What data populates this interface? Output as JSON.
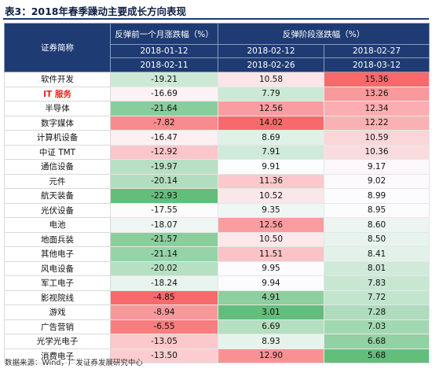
{
  "title": "表3：2018年春季躁动主要成长方向表现",
  "source": "数据来源：Wind，广发证券发展研究中心",
  "colors": {
    "header_bg": "#1f3b73",
    "positive_high": "#f26b6b",
    "negative_high": "#5fb86e",
    "highlight_text": "#e0261d"
  },
  "header": {
    "name_col": "证券简称",
    "group1": "反弹前一个月涨跌幅（%）",
    "group2": "反弹阶段涨跌幅（%）",
    "periods": [
      {
        "start": "2018-01-12",
        "end": "2018-02-11"
      },
      {
        "start": "2018-02-12",
        "end": "2018-02-26"
      },
      {
        "start": "2018-02-27",
        "end": "2018-03-12"
      }
    ]
  },
  "rows": [
    {
      "name": "软件开发",
      "values": [
        "-19.21",
        "10.58",
        "15.36"
      ]
    },
    {
      "name": "IT 服务",
      "values": [
        "-16.69",
        "7.79",
        "13.26"
      ],
      "highlight": true
    },
    {
      "name": "半导体",
      "values": [
        "-21.64",
        "12.56",
        "12.34"
      ]
    },
    {
      "name": "数字媒体",
      "values": [
        "-7.82",
        "14.02",
        "12.22"
      ]
    },
    {
      "name": "计算机设备",
      "values": [
        "-16.47",
        "8.69",
        "10.59"
      ]
    },
    {
      "name": "中证 TMT",
      "values": [
        "-12.92",
        "7.91",
        "10.36"
      ]
    },
    {
      "name": "通信设备",
      "values": [
        "-19.97",
        "9.91",
        "9.17"
      ]
    },
    {
      "name": "元件",
      "values": [
        "-20.14",
        "11.36",
        "9.02"
      ]
    },
    {
      "name": "航天装备",
      "values": [
        "-22.93",
        "10.52",
        "8.99"
      ]
    },
    {
      "name": "光伏设备",
      "values": [
        "-17.55",
        "9.35",
        "8.95"
      ]
    },
    {
      "name": "电池",
      "values": [
        "-18.07",
        "12.56",
        "8.60"
      ]
    },
    {
      "name": "地面兵装",
      "values": [
        "-21.57",
        "10.50",
        "8.50"
      ]
    },
    {
      "name": "其他电子",
      "values": [
        "-21.14",
        "11.51",
        "8.41"
      ]
    },
    {
      "name": "风电设备",
      "values": [
        "-20.02",
        "9.95",
        "8.01"
      ]
    },
    {
      "name": "军工电子",
      "values": [
        "-18.24",
        "9.94",
        "7.83"
      ]
    },
    {
      "name": "影视院线",
      "values": [
        "-4.85",
        "4.91",
        "7.72"
      ]
    },
    {
      "name": "游戏",
      "values": [
        "-8.94",
        "3.01",
        "7.28"
      ]
    },
    {
      "name": "广告营销",
      "values": [
        "-6.55",
        "6.69",
        "7.03"
      ]
    },
    {
      "name": "光学光电子",
      "values": [
        "-13.05",
        "8.93",
        "6.68"
      ]
    },
    {
      "name": "消费电子",
      "values": [
        "-13.50",
        "12.90",
        "5.68"
      ]
    }
  ]
}
